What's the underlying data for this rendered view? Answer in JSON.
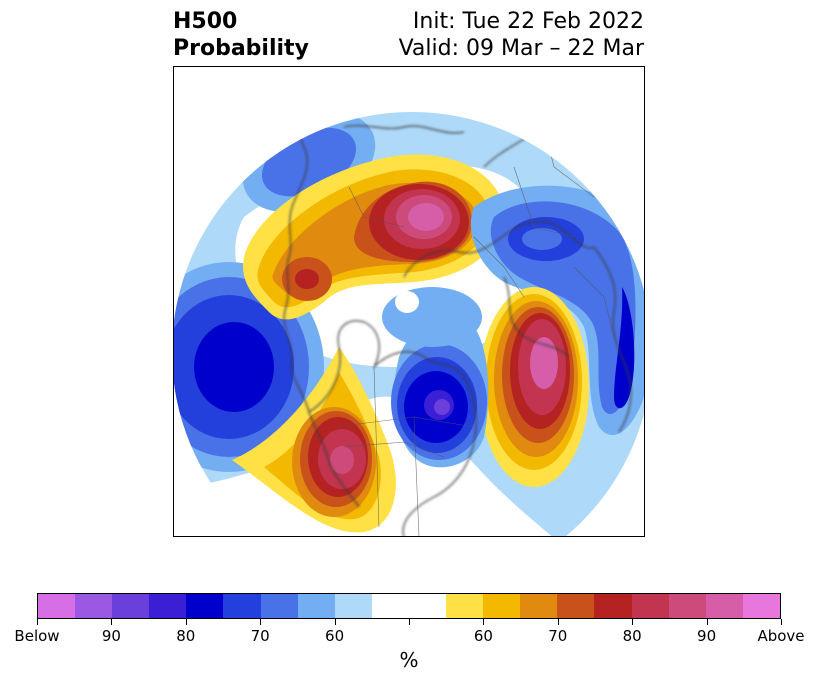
{
  "title": {
    "left_line1": "H500",
    "left_line2": "Probability",
    "right_line1": "Init: Tue 22 Feb 2022",
    "right_line2": "Valid: 09 Mar – 22 Mar"
  },
  "colorbar": {
    "unit_label": "%",
    "colors": [
      "#d66fe6",
      "#9b58e2",
      "#6b3fdc",
      "#3a1fd4",
      "#0000cc",
      "#2340dc",
      "#4a72e8",
      "#74aef2",
      "#aed9f9",
      "#ffffff",
      "#ffffff",
      "#ffe146",
      "#f3b800",
      "#e08a10",
      "#c9521b",
      "#b52222",
      "#c2344f",
      "#cc4b7a",
      "#d65ea8",
      "#e877dd"
    ],
    "tick_labels": [
      "Below",
      "90",
      "80",
      "70",
      "60",
      "",
      "60",
      "70",
      "80",
      "90",
      "Above"
    ]
  }
}
